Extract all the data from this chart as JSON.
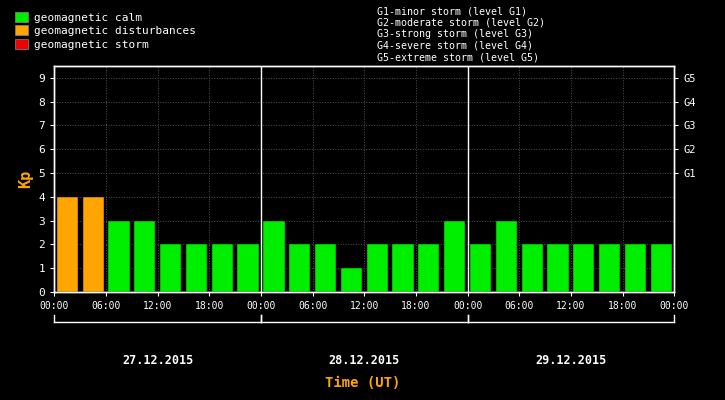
{
  "background_color": "#000000",
  "plot_bg_color": "#000000",
  "text_color": "#ffffff",
  "title_color": "#ffa500",
  "bar_values": [
    4,
    4,
    3,
    3,
    2,
    2,
    2,
    2,
    3,
    2,
    2,
    1,
    2,
    2,
    2,
    3,
    2,
    3,
    2,
    2,
    2,
    2,
    2,
    2
  ],
  "bar_colors": [
    "#ffa500",
    "#ffa500",
    "#00ee00",
    "#00ee00",
    "#00ee00",
    "#00ee00",
    "#00ee00",
    "#00ee00",
    "#00ee00",
    "#00ee00",
    "#00ee00",
    "#00ee00",
    "#00ee00",
    "#00ee00",
    "#00ee00",
    "#00ee00",
    "#00ee00",
    "#00ee00",
    "#00ee00",
    "#00ee00",
    "#00ee00",
    "#00ee00",
    "#00ee00",
    "#00ee00"
  ],
  "legend_items": [
    {
      "label": "geomagnetic calm",
      "color": "#00ee00"
    },
    {
      "label": "geomagnetic disturbances",
      "color": "#ffa500"
    },
    {
      "label": "geomagnetic storm",
      "color": "#ee0000"
    }
  ],
  "right_labels": [
    {
      "y": 5.0,
      "text": "G1"
    },
    {
      "y": 6.0,
      "text": "G2"
    },
    {
      "y": 7.0,
      "text": "G3"
    },
    {
      "y": 8.0,
      "text": "G4"
    },
    {
      "y": 9.0,
      "text": "G5"
    }
  ],
  "storm_legend_lines": [
    "G1-minor storm (level G1)",
    "G2-moderate storm (level G2)",
    "G3-strong storm (level G3)",
    "G4-severe storm (level G4)",
    "G5-extreme storm (level G5)"
  ],
  "day_labels": [
    "27.12.2015",
    "28.12.2015",
    "29.12.2015"
  ],
  "xlabel": "Time (UT)",
  "ylabel": "Kp",
  "ylim": [
    0,
    9.5
  ],
  "yticks": [
    0,
    1,
    2,
    3,
    4,
    5,
    6,
    7,
    8,
    9
  ],
  "axis_color": "#ffffff",
  "dot_grid_color": "#505050",
  "font_family": "monospace",
  "tick_labels": [
    "00:00",
    "06:00",
    "12:00",
    "18:00",
    "00:00",
    "06:00",
    "12:00",
    "18:00",
    "00:00",
    "06:00",
    "12:00",
    "18:00",
    "00:00"
  ]
}
